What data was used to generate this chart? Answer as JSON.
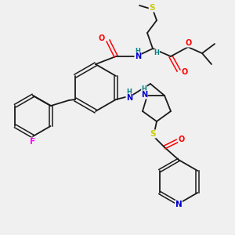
{
  "bg_color": "#f0f0f0",
  "bond_color": "#1a1a1a",
  "atom_colors": {
    "O": "#ff0000",
    "N": "#0000cd",
    "S": "#cccc00",
    "F": "#ff00ff",
    "H": "#008080",
    "C": "#1a1a1a"
  },
  "font_size": 6.5
}
